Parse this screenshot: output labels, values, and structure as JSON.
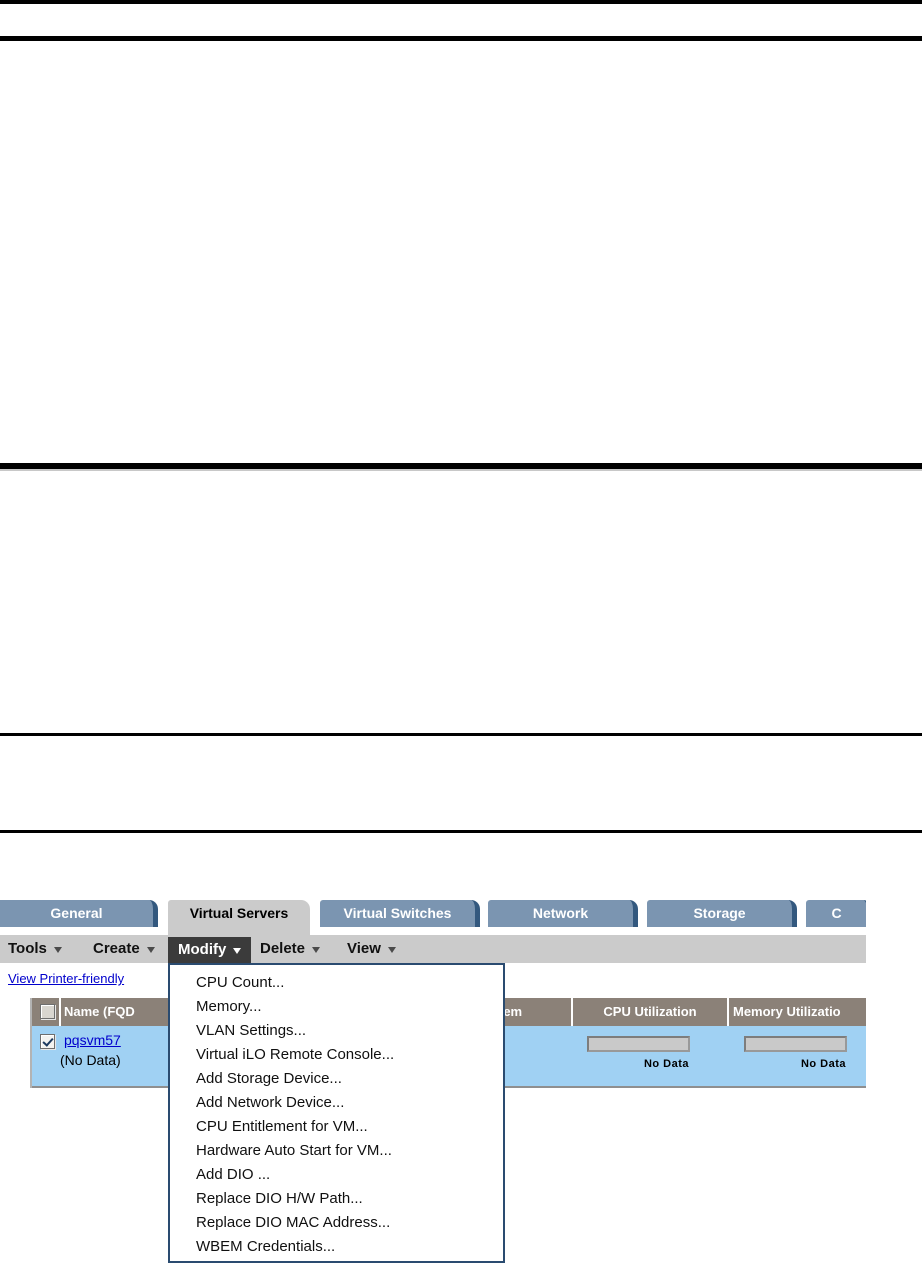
{
  "tabs": {
    "items": [
      {
        "label": "General",
        "active": false
      },
      {
        "label": "Virtual Servers",
        "active": true
      },
      {
        "label": "Virtual Switches",
        "active": false
      },
      {
        "label": "Network",
        "active": false
      },
      {
        "label": "Storage",
        "active": false
      },
      {
        "label": "C",
        "active": false
      }
    ]
  },
  "menubar": {
    "items": [
      {
        "label": "Tools"
      },
      {
        "label": "Create"
      },
      {
        "label": "Modify",
        "open": true
      },
      {
        "label": "Delete"
      },
      {
        "label": "View"
      }
    ]
  },
  "links": {
    "printer_friendly": "View Printer-friendly"
  },
  "modify_menu": {
    "items": [
      "CPU Count...",
      "Memory...",
      "VLAN Settings...",
      "Virtual iLO Remote Console...",
      "Add Storage Device...",
      "Add Network Device...",
      "CPU Entitlement for VM...",
      "Hardware Auto Start for VM...",
      "Add DIO ...",
      "Replace DIO H/W Path...",
      "Replace DIO MAC Address...",
      "WBEM Credentials..."
    ]
  },
  "table": {
    "headers": {
      "name": "Name (FQD",
      "system_fragment": "tem",
      "cpu": "CPU Utilization",
      "memory": "Memory Utilizatio"
    },
    "rows": [
      {
        "name": "pqsvm57",
        "name_note": "(No Data)",
        "checked": true,
        "cpu_utilization": "No Data",
        "memory_utilization": "No Data"
      }
    ]
  },
  "colors": {
    "tab_blue": "#7b95b1",
    "tab_edge": "#33587e",
    "active_tab_gray": "#cbcbcb",
    "modify_button_bg": "#3b3b3b",
    "dropdown_border": "#2a4b70",
    "table_header_bg": "#8b8178",
    "row_blue": "#a0d1f3",
    "link_blue": "#0000cc"
  }
}
